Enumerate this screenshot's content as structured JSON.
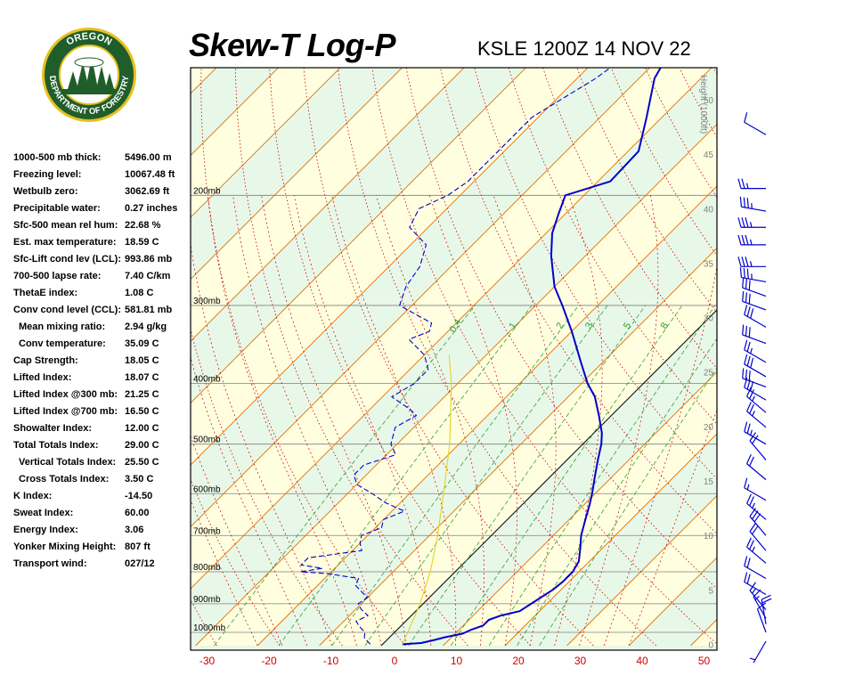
{
  "header": {
    "title": "Skew-T Log-P",
    "subtitle": "KSLE 1200Z 14 NOV 22"
  },
  "logo": {
    "text_top": "OREGON",
    "text_bottom": "DEPARTMENT OF FORESTRY",
    "colors": {
      "ring": "#1f5e2a",
      "rim": "#e8c020",
      "inner": "#ffffff",
      "trees": "#1f5e2a"
    }
  },
  "indices": [
    {
      "label": "1000-500 mb thick:",
      "value": "5496.00 m",
      "indent": false
    },
    {
      "label": "Freezing level:",
      "value": "10067.48 ft",
      "indent": false
    },
    {
      "label": "Wetbulb zero:",
      "value": "3062.69 ft",
      "indent": false
    },
    {
      "label": "Precipitable water:",
      "value": "0.27 inches",
      "indent": false
    },
    {
      "label": "Sfc-500 mean rel hum:",
      "value": "22.68 %",
      "indent": false
    },
    {
      "label": "Est. max temperature:",
      "value": "18.59 C",
      "indent": false
    },
    {
      "label": "Sfc-Lift cond lev (LCL):",
      "value": "993.86 mb",
      "indent": false
    },
    {
      "label": "700-500 lapse rate:",
      "value": "7.40 C/km",
      "indent": false
    },
    {
      "label": "ThetaE index:",
      "value": "1.08 C",
      "indent": false
    },
    {
      "label": "Conv cond level (CCL):",
      "value": "581.81 mb",
      "indent": false
    },
    {
      "label": "Mean mixing ratio:",
      "value": "2.94 g/kg",
      "indent": true
    },
    {
      "label": "Conv temperature:",
      "value": "35.09 C",
      "indent": true
    },
    {
      "label": "Cap Strength:",
      "value": "18.05 C",
      "indent": false
    },
    {
      "label": "Lifted Index:",
      "value": "18.07 C",
      "indent": false
    },
    {
      "label": "Lifted Index @300 mb:",
      "value": "21.25 C",
      "indent": false
    },
    {
      "label": "Lifted Index @700 mb:",
      "value": "16.50 C",
      "indent": false
    },
    {
      "label": "Showalter Index:",
      "value": "12.00 C",
      "indent": false
    },
    {
      "label": "Total Totals Index:",
      "value": "29.00 C",
      "indent": false
    },
    {
      "label": "Vertical Totals Index:",
      "value": "25.50 C",
      "indent": true
    },
    {
      "label": "Cross Totals Index:",
      "value": "3.50 C",
      "indent": true
    },
    {
      "label": "K Index:",
      "value": "-14.50",
      "indent": false
    },
    {
      "label": "Sweat Index:",
      "value": "60.00",
      "indent": false
    },
    {
      "label": "Energy Index:",
      "value": "3.06",
      "indent": false
    },
    {
      "label": "Yonker Mixing Height:",
      "value": "807 ft",
      "indent": false
    },
    {
      "label": "Transport wind:",
      "value": "027/12",
      "indent": false
    }
  ],
  "chart_data": {
    "type": "line",
    "title": "Skew-T Log-P",
    "xlabel": "",
    "ylabel": "",
    "x_ticks": [
      "-30",
      "-20",
      "-10",
      "0",
      "10",
      "20",
      "30",
      "40",
      "50"
    ],
    "pressure_levels": [
      {
        "p": 200,
        "label": "200mb"
      },
      {
        "p": 300,
        "label": "300mb"
      },
      {
        "p": 400,
        "label": "400mb"
      },
      {
        "p": 500,
        "label": "500mb"
      },
      {
        "p": 600,
        "label": "600mb"
      },
      {
        "p": 700,
        "label": "700mb"
      },
      {
        "p": 800,
        "label": "800mb"
      },
      {
        "p": 900,
        "label": "900mb"
      },
      {
        "p": 1000,
        "label": "1000mb"
      }
    ],
    "height_axis_label": "Height (1000ft)",
    "height_ticks": [
      "0",
      "5",
      "10",
      "15",
      "20",
      "25",
      "30",
      "35",
      "40",
      "45",
      "50"
    ],
    "mixing_ratio_labels": [
      "0.4",
      "1",
      "2",
      "3",
      "5",
      "8"
    ],
    "colors": {
      "temperature": "#0000cc",
      "dewpoint": "#0000cc",
      "parcel": "#e8d020",
      "isotherm": "#e07000",
      "dry_adiabat": "#cc0000",
      "moist_adiabat": "#cc0000",
      "mixing_ratio": "#30a030",
      "isobar": "#808080",
      "zero_isotherm": "#000000",
      "band_green": "#e8f8e8",
      "band_yellow": "#ffffe0",
      "tick_label": "#cc0000"
    },
    "series": [
      {
        "name": "temperature",
        "points": [
          [
            1045,
            3.2
          ],
          [
            1040,
            6.0
          ],
          [
            1030,
            7.5
          ],
          [
            1018,
            9.0
          ],
          [
            1005,
            11.2
          ],
          [
            990,
            12.0
          ],
          [
            975,
            13.2
          ],
          [
            955,
            13.2
          ],
          [
            940,
            14.5
          ],
          [
            925,
            16.8
          ],
          [
            905,
            17.3
          ],
          [
            880,
            18.0
          ],
          [
            855,
            18.7
          ],
          [
            830,
            19.0
          ],
          [
            800,
            19.0
          ],
          [
            770,
            18.3
          ],
          [
            735,
            16.5
          ],
          [
            700,
            14.5
          ],
          [
            660,
            12.6
          ],
          [
            625,
            10.9
          ],
          [
            600,
            9.5
          ],
          [
            565,
            7.3
          ],
          [
            530,
            5.0
          ],
          [
            500,
            3.0
          ],
          [
            480,
            1.3
          ],
          [
            450,
            -2.0
          ],
          [
            420,
            -5.7
          ],
          [
            400,
            -9.0
          ],
          [
            370,
            -13.5
          ],
          [
            330,
            -20.0
          ],
          [
            300,
            -25.7
          ],
          [
            280,
            -30.0
          ],
          [
            250,
            -35.5
          ],
          [
            230,
            -39.0
          ],
          [
            215,
            -41.0
          ],
          [
            200,
            -43.0
          ],
          [
            190,
            -38.0
          ],
          [
            170,
            -38.3
          ],
          [
            150,
            -42.5
          ],
          [
            130,
            -47.5
          ],
          [
            120,
            -49.0
          ]
        ]
      },
      {
        "name": "dewpoint",
        "dashed": true,
        "points": [
          [
            1045,
            -2.0
          ],
          [
            1020,
            -4.0
          ],
          [
            1000,
            -4.8
          ],
          [
            980,
            -6.5
          ],
          [
            960,
            -8.0
          ],
          [
            940,
            -7.0
          ],
          [
            920,
            -9.0
          ],
          [
            900,
            -10.5
          ],
          [
            880,
            -10.0
          ],
          [
            860,
            -12.0
          ],
          [
            840,
            -14.0
          ],
          [
            820,
            -14.5
          ],
          [
            805,
            -20.5
          ],
          [
            800,
            -25.0
          ],
          [
            790,
            -22.0
          ],
          [
            780,
            -26.0
          ],
          [
            760,
            -26.0
          ],
          [
            740,
            -18.5
          ],
          [
            720,
            -20.0
          ],
          [
            700,
            -21.0
          ],
          [
            680,
            -19.0
          ],
          [
            660,
            -20.0
          ],
          [
            640,
            -18.0
          ],
          [
            620,
            -22.5
          ],
          [
            600,
            -26.0
          ],
          [
            580,
            -30.0
          ],
          [
            560,
            -32.0
          ],
          [
            540,
            -32.0
          ],
          [
            520,
            -28.5
          ],
          [
            500,
            -31.0
          ],
          [
            470,
            -33.0
          ],
          [
            450,
            -31.5
          ],
          [
            440,
            -33.5
          ],
          [
            420,
            -38.5
          ],
          [
            400,
            -37.0
          ],
          [
            380,
            -37.0
          ],
          [
            360,
            -40.0
          ],
          [
            340,
            -45.0
          ],
          [
            330,
            -43.0
          ],
          [
            320,
            -44.0
          ],
          [
            310,
            -48.0
          ],
          [
            300,
            -52.0
          ],
          [
            280,
            -54.0
          ],
          [
            260,
            -55.0
          ],
          [
            240,
            -57.5
          ],
          [
            225,
            -63.0
          ],
          [
            210,
            -64.5
          ],
          [
            200,
            -62.0
          ],
          [
            190,
            -61.0
          ],
          [
            170,
            -61.0
          ],
          [
            150,
            -61.0
          ],
          [
            130,
            -57.0
          ],
          [
            115,
            -55.0
          ]
        ]
      },
      {
        "name": "parcel",
        "points": [
          [
            1045,
            3.2
          ],
          [
            994,
            2.0
          ],
          [
            900,
            -0.5
          ],
          [
            800,
            -4.0
          ],
          [
            700,
            -8.7
          ],
          [
            600,
            -14.5
          ],
          [
            500,
            -21.5
          ],
          [
            400,
            -31.0
          ],
          [
            360,
            -36.0
          ]
        ]
      }
    ],
    "wind_barbs": [
      {
        "p": 1045,
        "dir": 210,
        "spd": 5
      },
      {
        "p": 1000,
        "dir": 340,
        "spd": 10
      },
      {
        "p": 970,
        "dir": 350,
        "spd": 20
      },
      {
        "p": 950,
        "dir": 330,
        "spd": 15
      },
      {
        "p": 920,
        "dir": 320,
        "spd": 15
      },
      {
        "p": 870,
        "dir": 300,
        "spd": 20
      },
      {
        "p": 820,
        "dir": 300,
        "spd": 20
      },
      {
        "p": 775,
        "dir": 310,
        "spd": 25
      },
      {
        "p": 740,
        "dir": 320,
        "spd": 20
      },
      {
        "p": 700,
        "dir": 320,
        "spd": 30
      },
      {
        "p": 660,
        "dir": 310,
        "spd": 25
      },
      {
        "p": 615,
        "dir": 300,
        "spd": 15
      },
      {
        "p": 570,
        "dir": 310,
        "spd": 20
      },
      {
        "p": 530,
        "dir": 320,
        "spd": 20
      },
      {
        "p": 500,
        "dir": 300,
        "spd": 25
      },
      {
        "p": 470,
        "dir": 310,
        "spd": 25
      },
      {
        "p": 445,
        "dir": 310,
        "spd": 25
      },
      {
        "p": 425,
        "dir": 300,
        "spd": 30
      },
      {
        "p": 405,
        "dir": 290,
        "spd": 30
      },
      {
        "p": 390,
        "dir": 300,
        "spd": 30
      },
      {
        "p": 370,
        "dir": 300,
        "spd": 25
      },
      {
        "p": 345,
        "dir": 290,
        "spd": 30
      },
      {
        "p": 325,
        "dir": 300,
        "spd": 30
      },
      {
        "p": 305,
        "dir": 290,
        "spd": 30
      },
      {
        "p": 290,
        "dir": 290,
        "spd": 30
      },
      {
        "p": 275,
        "dir": 280,
        "spd": 35
      },
      {
        "p": 260,
        "dir": 270,
        "spd": 35
      },
      {
        "p": 240,
        "dir": 270,
        "spd": 35
      },
      {
        "p": 225,
        "dir": 270,
        "spd": 35
      },
      {
        "p": 212,
        "dir": 280,
        "spd": 35
      },
      {
        "p": 195,
        "dir": 270,
        "spd": 25
      },
      {
        "p": 160,
        "dir": 300,
        "spd": 10
      }
    ]
  }
}
